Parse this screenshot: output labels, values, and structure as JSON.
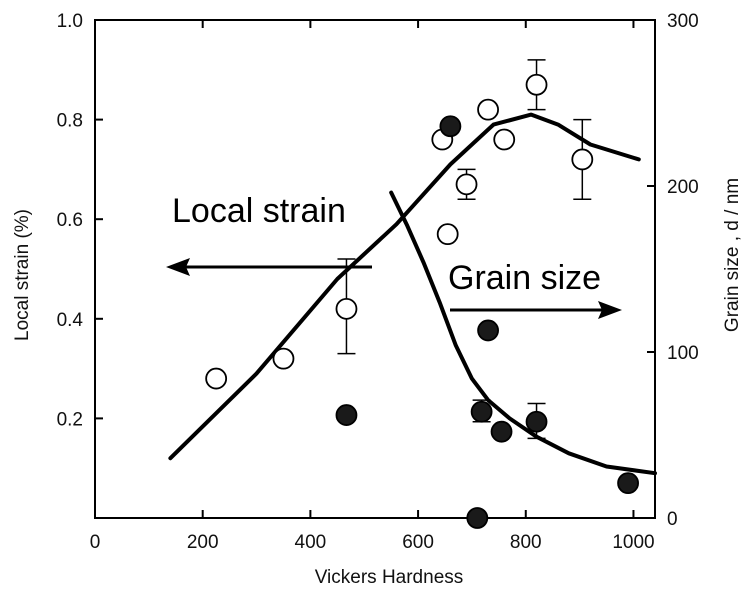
{
  "chart_data": {
    "type": "scatter",
    "xlabel": "Vickers Hardness",
    "ylabel": "Local strain (%)",
    "y2label": "Grain size ,  d  /  nm",
    "xlim": [
      0,
      1040
    ],
    "ylim": [
      0,
      1.0
    ],
    "y2lim": [
      0,
      300
    ],
    "x_ticks": [
      "0",
      "200",
      "400",
      "600",
      "800",
      "1000"
    ],
    "y_ticks": [
      "0.2",
      "0.4",
      "0.6",
      "0.8",
      "1.0"
    ],
    "y2_ticks": [
      "0",
      "100",
      "200",
      "300"
    ],
    "grid": false,
    "series": [
      {
        "name": "Local strain",
        "axis": "left",
        "marker": "open-circle",
        "points": [
          {
            "x": 225,
            "y": 0.28
          },
          {
            "x": 350,
            "y": 0.32
          },
          {
            "x": 467,
            "y": 0.42,
            "err": [
              0.33,
              0.52
            ]
          },
          {
            "x": 645,
            "y": 0.76
          },
          {
            "x": 655,
            "y": 0.57
          },
          {
            "x": 690,
            "y": 0.67,
            "err": [
              0.64,
              0.7
            ]
          },
          {
            "x": 730,
            "y": 0.82
          },
          {
            "x": 760,
            "y": 0.76
          },
          {
            "x": 820,
            "y": 0.87,
            "err": [
              0.82,
              0.92
            ]
          },
          {
            "x": 905,
            "y": 0.72,
            "err": [
              0.64,
              0.8
            ]
          }
        ]
      },
      {
        "name": "Grain size",
        "axis": "right",
        "marker": "filled-circle",
        "points": [
          {
            "x": 467,
            "y": 62
          },
          {
            "x": 660,
            "y": 236
          },
          {
            "x": 710,
            "y": 0
          },
          {
            "x": 730,
            "y": 113
          },
          {
            "x": 718,
            "y": 64,
            "err": [
              58,
              71
            ]
          },
          {
            "x": 755,
            "y": 52
          },
          {
            "x": 820,
            "y": 58,
            "err": [
              48,
              69
            ]
          },
          {
            "x": 990,
            "y": 21
          }
        ]
      }
    ],
    "curves": [
      {
        "name": "Local strain",
        "axis": "left",
        "points": [
          [
            140,
            0.12
          ],
          [
            300,
            0.29
          ],
          [
            450,
            0.48
          ],
          [
            560,
            0.59
          ],
          [
            660,
            0.71
          ],
          [
            740,
            0.79
          ],
          [
            810,
            0.81
          ],
          [
            860,
            0.79
          ],
          [
            920,
            0.75
          ],
          [
            1010,
            0.72
          ]
        ]
      },
      {
        "name": "Grain size",
        "axis": "right",
        "points": [
          [
            550,
            196
          ],
          [
            580,
            176
          ],
          [
            610,
            154
          ],
          [
            640,
            130
          ],
          [
            670,
            104
          ],
          [
            700,
            84
          ],
          [
            730,
            71
          ],
          [
            770,
            60
          ],
          [
            820,
            49
          ],
          [
            880,
            39
          ],
          [
            950,
            31
          ],
          [
            1040,
            27
          ]
        ]
      }
    ],
    "annotations": [
      {
        "text": "Local strain",
        "arrow": "left"
      },
      {
        "text": "Grain size",
        "arrow": "right"
      }
    ]
  }
}
